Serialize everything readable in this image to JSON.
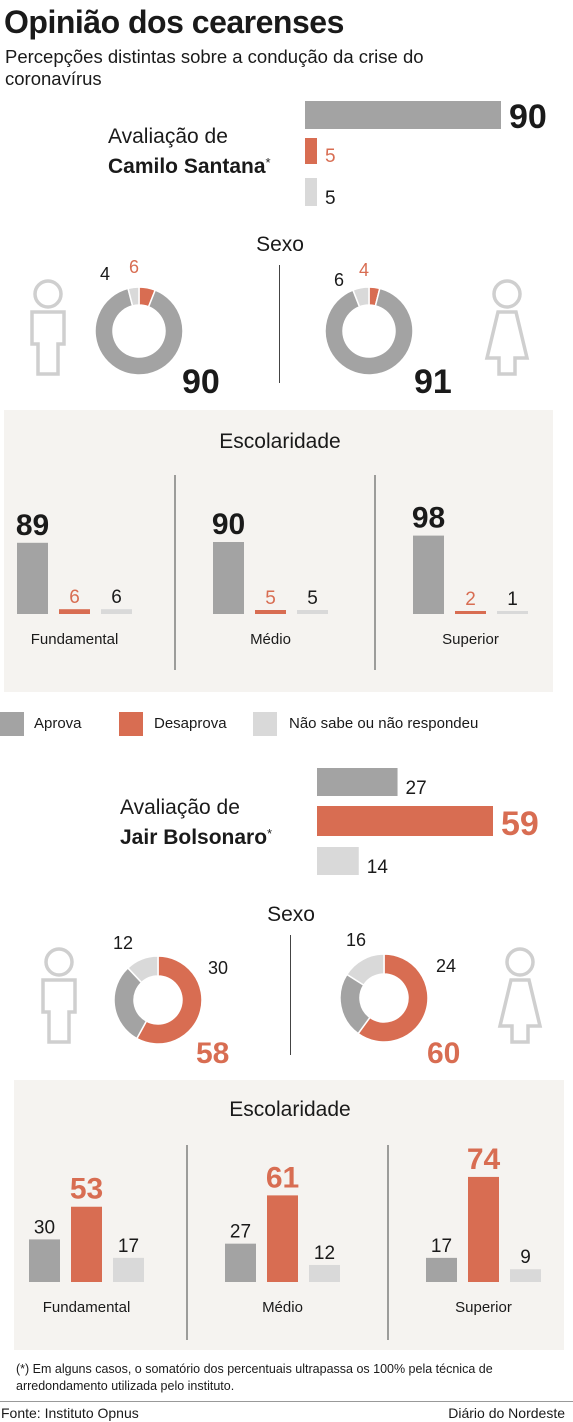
{
  "title": "Opinião dos cearenses",
  "subtitle": "Percepções distintas sobre a condução da crise do coronavírus",
  "colors": {
    "aprova": "#a3a3a3",
    "desaprova": "#d86d52",
    "nao_sabe": "#d9d9d9",
    "text": "#1a1a1a",
    "box": "#f5f3f0",
    "icon": "#cfcfcf"
  },
  "legend": {
    "aprova": "Aprova",
    "desaprova": "Desaprova",
    "nao_sabe": "Não sabe ou não respondeu"
  },
  "camilo": {
    "label_line1": "Avaliação de",
    "label_line2": "Camilo Santana",
    "asterisk": "*",
    "sexo_title": "Sexo",
    "escolaridade_title": "Escolaridade"
  },
  "bolsonaro": {
    "label_line1": "Avaliação de",
    "label_line2": "Jair Bolsonaro",
    "asterisk": "*",
    "sexo_title": "Sexo",
    "escolaridade_title": "Escolaridade"
  },
  "footnote": "(*) Em alguns casos, o somatório dos percentuais ultrapassa os 100% pela técnica de arredondamento utilizada pelo instituto.",
  "source": "Fonte: Instituto Opnus",
  "publisher": "Diário do Nordeste",
  "chart_data": [
    {
      "type": "bar",
      "orientation": "horizontal",
      "series": [
        {
          "name": "Aprova",
          "values": [
            90
          ]
        },
        {
          "name": "Desaprova",
          "values": [
            5
          ]
        },
        {
          "name": "Não sabe ou não respondeu",
          "values": [
            5
          ]
        }
      ],
      "categories": [
        "Camilo Santana"
      ],
      "title": "Avaliação de Camilo Santana",
      "max": 100
    },
    {
      "type": "pie",
      "variant": "donut",
      "title": "Sexo",
      "charts": [
        {
          "group": "masculino",
          "values": {
            "aprova": 90,
            "desaprova": 6,
            "nao_sabe": 4
          }
        },
        {
          "group": "feminino",
          "values": {
            "aprova": 91,
            "desaprova": 4,
            "nao_sabe": 6
          }
        }
      ]
    },
    {
      "type": "bar",
      "title": "Escolaridade",
      "categories": [
        "Fundamental",
        "Médio",
        "Superior"
      ],
      "series": [
        {
          "name": "Aprova",
          "values": [
            89,
            90,
            98
          ]
        },
        {
          "name": "Desaprova",
          "values": [
            6,
            5,
            2
          ]
        },
        {
          "name": "Não sabe ou não respondeu",
          "values": [
            6,
            5,
            1
          ]
        }
      ]
    },
    {
      "type": "bar",
      "orientation": "horizontal",
      "series": [
        {
          "name": "Aprova",
          "values": [
            27
          ]
        },
        {
          "name": "Desaprova",
          "values": [
            59
          ]
        },
        {
          "name": "Não sabe ou não respondeu",
          "values": [
            14
          ]
        }
      ],
      "categories": [
        "Jair Bolsonaro"
      ],
      "title": "Avaliação de Jair Bolsonaro",
      "max": 100
    },
    {
      "type": "pie",
      "variant": "donut",
      "title": "Sexo",
      "charts": [
        {
          "group": "masculino",
          "values": {
            "aprova": 30,
            "desaprova": 58,
            "nao_sabe": 12
          }
        },
        {
          "group": "feminino",
          "values": {
            "aprova": 24,
            "desaprova": 60,
            "nao_sabe": 16
          }
        }
      ]
    },
    {
      "type": "bar",
      "title": "Escolaridade",
      "categories": [
        "Fundamental",
        "Médio",
        "Superior"
      ],
      "series": [
        {
          "name": "Aprova",
          "values": [
            30,
            27,
            17
          ]
        },
        {
          "name": "Desaprova",
          "values": [
            53,
            61,
            74
          ]
        },
        {
          "name": "Não sabe ou não respondeu",
          "values": [
            17,
            12,
            9
          ]
        }
      ]
    }
  ]
}
